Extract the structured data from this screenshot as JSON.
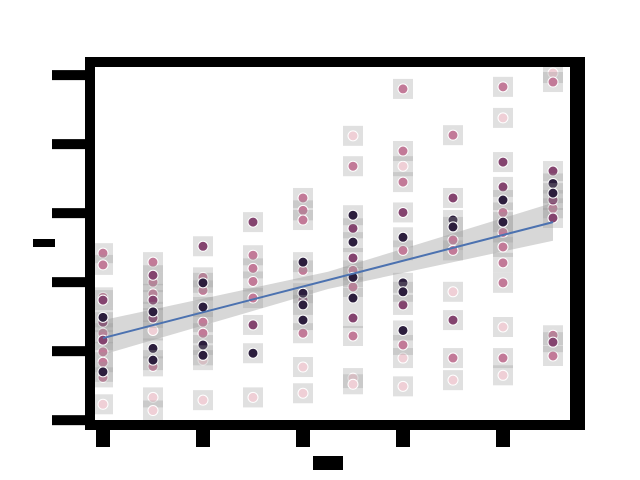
{
  "chart_data": {
    "type": "scatter",
    "xlim": [
      -0.36,
      9.44
    ],
    "ylim": [
      -0.07,
      5.19
    ],
    "xticks": [
      0,
      2,
      4,
      6,
      8
    ],
    "yticks": [
      0,
      1,
      2,
      3,
      4,
      5
    ],
    "series": [
      {
        "color": "#efcfd6",
        "x": [
          0,
          1,
          1,
          1,
          2,
          2,
          3,
          4,
          4,
          5,
          5,
          5,
          6,
          6,
          6,
          7,
          7,
          8,
          8,
          8,
          9
        ],
        "values": [
          0.23,
          1.3,
          0.33,
          0.14,
          0.87,
          0.29,
          0.33,
          0.77,
          0.39,
          4.12,
          0.61,
          0.52,
          3.68,
          0.9,
          0.49,
          1.86,
          0.58,
          4.38,
          1.35,
          0.65,
          5.03
        ]
      },
      {
        "color": "#c27a98",
        "x": [
          0,
          0,
          0,
          0,
          0,
          0,
          0,
          1,
          1,
          1,
          1,
          2,
          2,
          2,
          2,
          3,
          3,
          3,
          3,
          4,
          4,
          4,
          4,
          4,
          5,
          5,
          5,
          5,
          6,
          6,
          6,
          6,
          6,
          7,
          7,
          7,
          7,
          8,
          8,
          8,
          8,
          8,
          8,
          8,
          9,
          9,
          9,
          9
        ],
        "values": [
          2.42,
          2.25,
          1.78,
          1.26,
          0.99,
          0.84,
          0.62,
          2.29,
          2.0,
          1.83,
          0.78,
          2.07,
          1.88,
          1.42,
          1.26,
          2.39,
          2.2,
          2.01,
          1.77,
          3.22,
          3.04,
          2.9,
          2.17,
          1.26,
          3.68,
          2.17,
          1.93,
          1.22,
          4.8,
          3.9,
          3.45,
          2.46,
          1.09,
          4.13,
          2.61,
          2.46,
          0.9,
          4.83,
          3.01,
          2.72,
          2.51,
          2.28,
          1.99,
          0.9,
          4.9,
          3.07,
          1.23,
          0.93
        ]
      },
      {
        "color": "#84446f",
        "x": [
          0,
          0,
          0,
          1,
          1,
          1,
          2,
          3,
          3,
          4,
          5,
          5,
          5,
          6,
          6,
          7,
          7,
          8,
          8,
          9,
          9,
          9,
          9
        ],
        "values": [
          1.74,
          1.42,
          1.16,
          2.1,
          1.74,
          1.48,
          2.52,
          2.87,
          1.38,
          1.74,
          2.78,
          2.35,
          1.48,
          3.01,
          1.67,
          3.22,
          1.45,
          3.74,
          3.38,
          3.61,
          3.19,
          2.93,
          1.13
        ]
      },
      {
        "color": "#2c1e3d",
        "x": [
          0,
          0,
          1,
          1,
          1,
          2,
          2,
          2,
          2,
          3,
          4,
          4,
          4,
          4,
          5,
          5,
          5,
          5,
          6,
          6,
          6,
          6,
          7,
          7,
          8,
          8,
          9,
          9
        ],
        "values": [
          1.49,
          0.7,
          1.57,
          1.04,
          0.87,
          1.99,
          1.64,
          1.09,
          0.94,
          0.97,
          2.29,
          1.84,
          1.67,
          1.45,
          2.97,
          2.58,
          2.07,
          1.77,
          2.65,
          1.99,
          1.86,
          1.3,
          2.9,
          2.8,
          3.19,
          2.87,
          3.43,
          3.29
        ]
      }
    ],
    "regression": {
      "color": "#4c72b0",
      "x": [
        0,
        9
      ],
      "values": [
        1.19,
        2.87
      ]
    },
    "ci": {
      "color": "#d0d0d0",
      "x": [
        0,
        4.5,
        9
      ],
      "lower": [
        0.95,
        1.9,
        2.6
      ],
      "upper": [
        1.45,
        2.15,
        3.15
      ]
    }
  }
}
